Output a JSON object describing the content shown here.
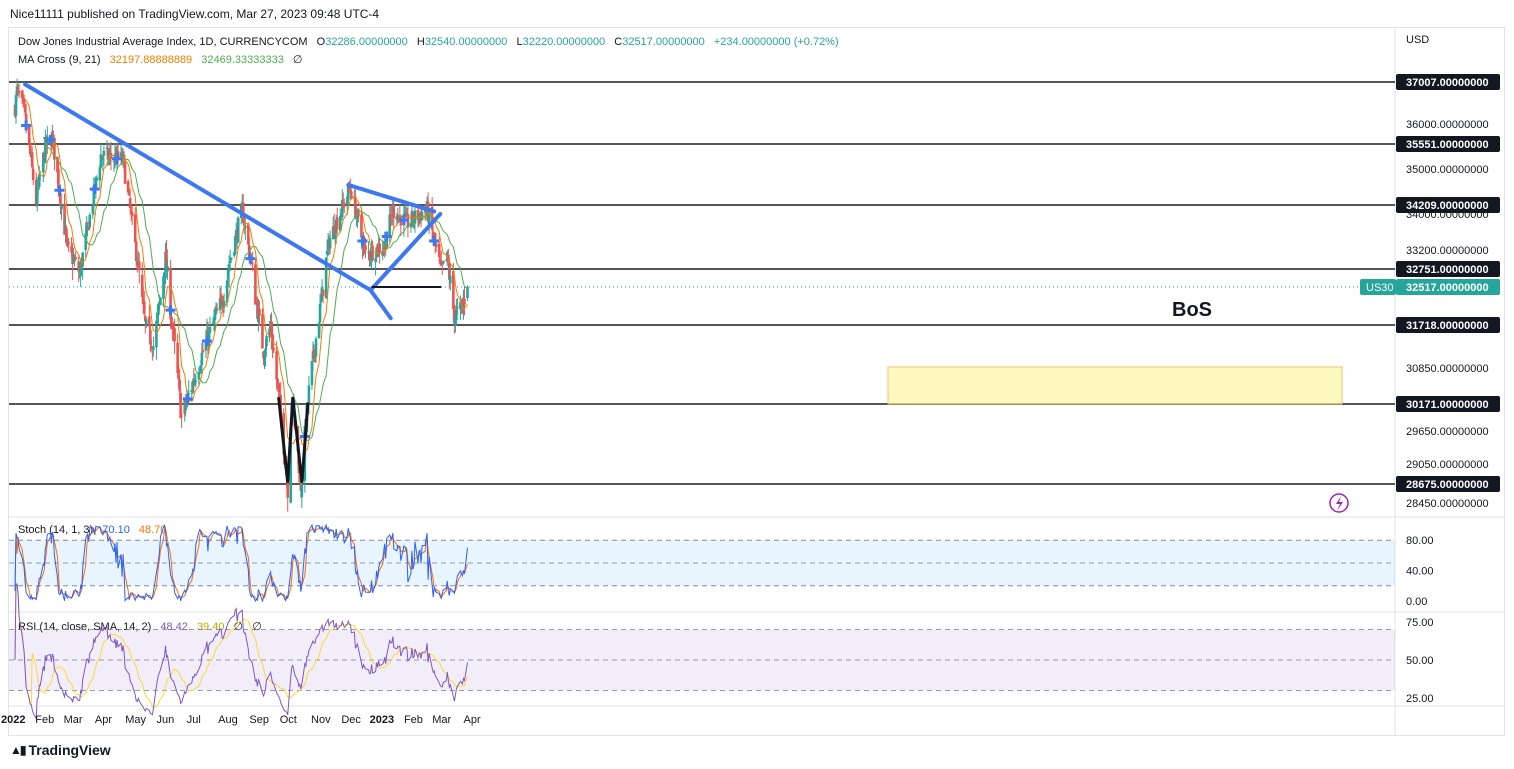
{
  "header": {
    "published": "Nice11111 published on TradingView.com, Mar 27, 2023 09:48 UTC-4"
  },
  "legend_main": {
    "symbol": "Dow Jones Industrial Average Index, 1D, CURRENCYCOM",
    "o_label": "O",
    "o": "32286.00000000",
    "h_label": "H",
    "h": "32540.00000000",
    "l_label": "L",
    "l": "32220.00000000",
    "c_label": "C",
    "c": "32517.00000000",
    "change": "+234.00000000 (+0.72%)"
  },
  "legend_ma": {
    "name": "MA Cross (9, 21)",
    "v1": "32197.88888889",
    "v2": "32469.33333333",
    "v3": "∅"
  },
  "legend_stoch": {
    "name": "Stoch (14, 1, 3)",
    "v1": "70.10",
    "v2": "48.70"
  },
  "legend_rsi": {
    "name": "RSI (14, close, SMA, 14, 2)",
    "v1": "48.42",
    "v2": "39.40",
    "v3": "∅",
    "v4": "∅"
  },
  "price_axis": {
    "currency": "USD",
    "ticks": [
      "36000.00000000",
      "35000.00000000",
      "34000.00000000",
      "33200.00000000",
      "30850.00000000",
      "29650.00000000",
      "29050.00000000",
      "28450.00000000"
    ],
    "tick_values": [
      36000,
      35000,
      34000,
      33200,
      30850,
      29650,
      29050,
      28450
    ]
  },
  "levels": [
    {
      "label": "37007.00000000",
      "value": 37007
    },
    {
      "label": "35551.00000000",
      "value": 35551
    },
    {
      "label": "34209.00000000",
      "value": 34209
    },
    {
      "label": "32751.00000000",
      "value": 32751
    },
    {
      "label": "31718.00000000",
      "value": 31718
    },
    {
      "label": "30171.00000000",
      "value": 30171
    },
    {
      "label": "28675.00000000",
      "value": 28675
    }
  ],
  "current_price": {
    "symbol": "US30",
    "label": "32517.00000000",
    "value": 32517
  },
  "annotations": {
    "bos": "BoS"
  },
  "stoch_axis": {
    "ticks": [
      "80.00",
      "40.00",
      "0.00"
    ],
    "values": [
      80,
      40,
      0
    ]
  },
  "rsi_axis": {
    "ticks": [
      "75.00",
      "50.00",
      "25.00"
    ],
    "values": [
      75,
      50,
      25
    ]
  },
  "time_axis": [
    "2022",
    "Feb",
    "Mar",
    "Apr",
    "May",
    "Jun",
    "Jul",
    "Aug",
    "Sep",
    "Oct",
    "Nov",
    "Dec",
    "2023",
    "Feb",
    "Mar",
    "Apr"
  ],
  "brand": {
    "name": "TradingView"
  },
  "colors": {
    "up": "#26a69a",
    "down": "#ef5350",
    "ma_fast": "#f57c00",
    "ma_slow": "#4caf50",
    "trend": "#3d78f0",
    "stoch_k": "#2962ff",
    "stoch_d": "#ff6d00",
    "rsi": "#7e57c2",
    "rsi_ma": "#fdd835",
    "zone": "#fff59d"
  },
  "chart_data": {
    "type": "candlestick",
    "title": "Dow Jones Industrial Average Index, 1D, CURRENCYCOM",
    "ylim": [
      28200,
      37700
    ],
    "months": [
      "2022",
      "Feb",
      "Mar",
      "Apr",
      "May",
      "Jun",
      "Jul",
      "Aug",
      "Sep",
      "Oct",
      "Nov",
      "Dec",
      "2023",
      "Feb",
      "Mar",
      "Apr"
    ],
    "close_path": [
      {
        "d": "2022-01-03",
        "c": 36400
      },
      {
        "d": "2022-01-05",
        "c": 36800
      },
      {
        "d": "2022-01-12",
        "c": 36300
      },
      {
        "d": "2022-01-24",
        "c": 34300
      },
      {
        "d": "2022-02-02",
        "c": 35500
      },
      {
        "d": "2022-02-09",
        "c": 35700
      },
      {
        "d": "2022-02-24",
        "c": 33200
      },
      {
        "d": "2022-03-08",
        "c": 32700
      },
      {
        "d": "2022-03-29",
        "c": 35300
      },
      {
        "d": "2022-04-20",
        "c": 35200
      },
      {
        "d": "2022-05-12",
        "c": 31700
      },
      {
        "d": "2022-05-20",
        "c": 31300
      },
      {
        "d": "2022-06-01",
        "c": 33000
      },
      {
        "d": "2022-06-17",
        "c": 29900
      },
      {
        "d": "2022-07-05",
        "c": 31000
      },
      {
        "d": "2022-07-28",
        "c": 32300
      },
      {
        "d": "2022-08-16",
        "c": 34100
      },
      {
        "d": "2022-09-06",
        "c": 31200
      },
      {
        "d": "2022-09-13",
        "c": 31700
      },
      {
        "d": "2022-09-30",
        "c": 28700
      },
      {
        "d": "2022-10-04",
        "c": 30300
      },
      {
        "d": "2022-10-13",
        "c": 28700
      },
      {
        "d": "2022-10-21",
        "c": 30400
      },
      {
        "d": "2022-11-10",
        "c": 33400
      },
      {
        "d": "2022-12-01",
        "c": 34600
      },
      {
        "d": "2022-12-16",
        "c": 33100
      },
      {
        "d": "2023-01-04",
        "c": 33300
      },
      {
        "d": "2023-01-12",
        "c": 34100
      },
      {
        "d": "2023-01-26",
        "c": 33800
      },
      {
        "d": "2023-02-15",
        "c": 34100
      },
      {
        "d": "2023-03-01",
        "c": 32700
      },
      {
        "d": "2023-03-07",
        "c": 33000
      },
      {
        "d": "2023-03-14",
        "c": 31900
      },
      {
        "d": "2023-03-22",
        "c": 32100
      },
      {
        "d": "2023-03-27",
        "c": 32517
      }
    ],
    "last": {
      "open": 32286,
      "high": 32540,
      "low": 32220,
      "close": 32517,
      "change": 234,
      "change_pct": 0.72
    },
    "ma_cross": {
      "fast": 9,
      "slow": 21,
      "fast_value": 32197.88888889,
      "slow_value": 32469.33333333
    },
    "supply_zone": {
      "from": 30171,
      "to": 30870
    },
    "stoch": {
      "k": 70.1,
      "d": 48.7,
      "upper": 80,
      "lower": 20
    },
    "rsi": {
      "value": 48.42,
      "ma": 39.4,
      "upper": 70,
      "lower": 30
    }
  }
}
